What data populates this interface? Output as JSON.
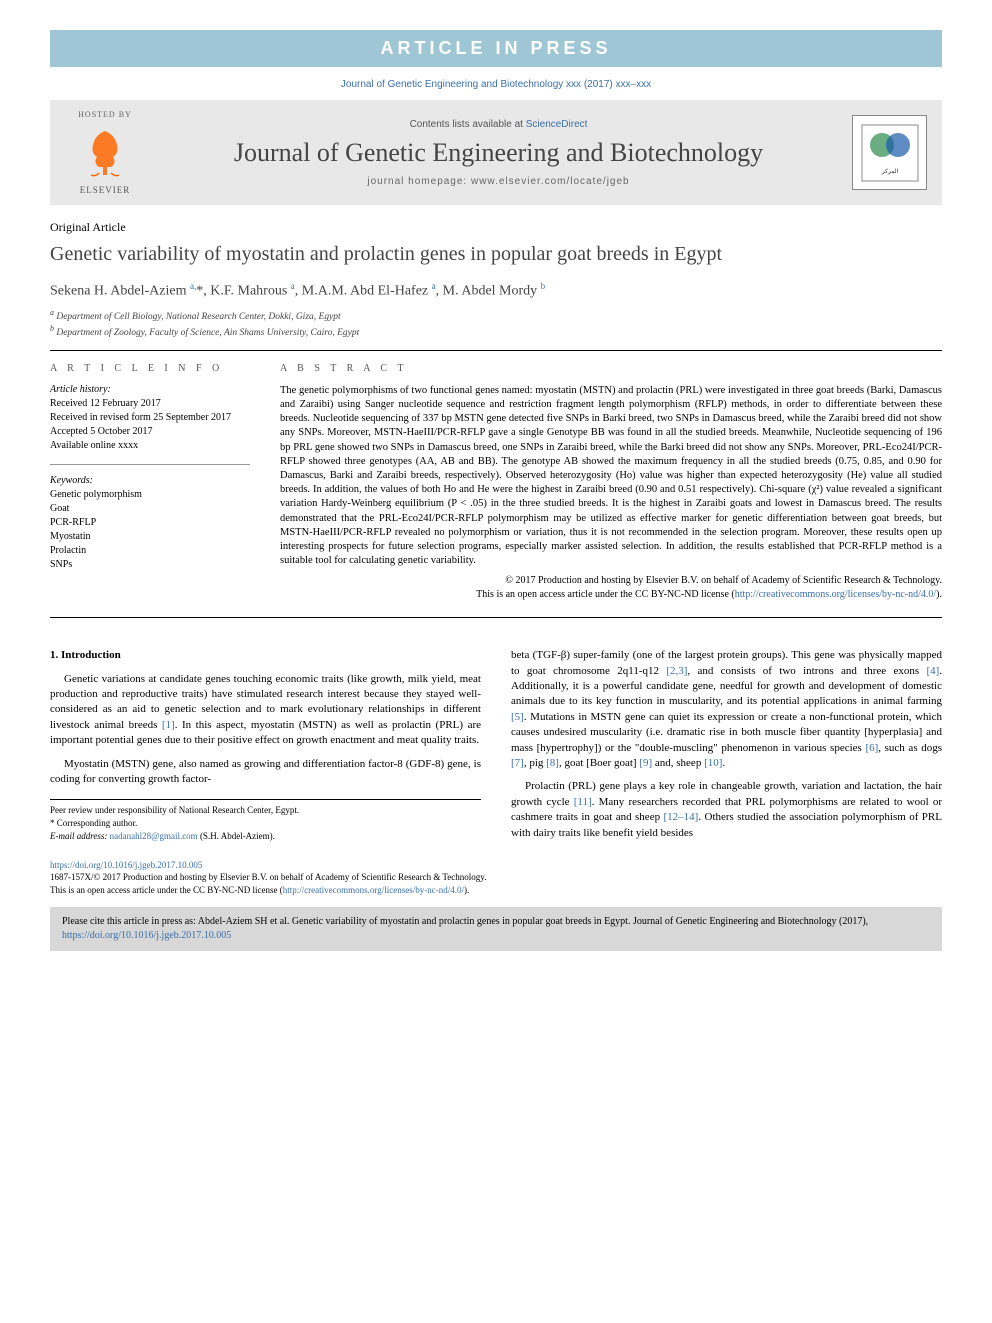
{
  "banner": "ARTICLE IN PRESS",
  "citation_top": "Journal of Genetic Engineering and Biotechnology xxx (2017) xxx–xxx",
  "header": {
    "hosted_by": "HOSTED BY",
    "elsevier": "ELSEVIER",
    "contents_prefix": "Contents lists available at ",
    "contents_link": "ScienceDirect",
    "journal": "Journal of Genetic Engineering and Biotechnology",
    "homepage": "journal homepage: www.elsevier.com/locate/jgeb"
  },
  "article_type": "Original Article",
  "title": "Genetic variability of myostatin and prolactin genes in popular goat breeds in Egypt",
  "authors_html": "Sekena H. Abdel-Aziem <sup>a,</sup>*, K.F. Mahrous <sup>a</sup>, M.A.M. Abd El-Hafez <sup>a</sup>, M. Abdel Mordy <sup>b</sup>",
  "affiliations": [
    "a Department of Cell Biology, National Research Center, Dokki, Giza, Egypt",
    "b Department of Zoology, Faculty of Science, Ain Shams University, Cairo, Egypt"
  ],
  "info": {
    "head": "A R T I C L E   I N F O",
    "history_label": "Article history:",
    "history": [
      "Received 12 February 2017",
      "Received in revised form 25 September 2017",
      "Accepted 5 October 2017",
      "Available online xxxx"
    ],
    "keywords_label": "Keywords:",
    "keywords": [
      "Genetic polymorphism",
      "Goat",
      "PCR-RFLP",
      "Myostatin",
      "Prolactin",
      "SNPs"
    ]
  },
  "abstract": {
    "head": "A B S T R A C T",
    "text": "The genetic polymorphisms of two functional genes named: myostatin (MSTN) and prolactin (PRL) were investigated in three goat breeds (Barki, Damascus and Zaraibi) using Sanger nucleotide sequence and restriction fragment length polymorphism (RFLP) methods, in order to differentiate between these breeds. Nucleotide sequencing of 337 bp MSTN gene detected five SNPs in Barki breed, two SNPs in Damascus breed, while the Zaraibi breed did not show any SNPs. Moreover, MSTN-HaeIII/PCR-RFLP gave a single Genotype BB was found in all the studied breeds. Meanwhile, Nucleotide sequencing of 196 bp PRL gene showed two SNPs in Damascus breed, one SNPs in Zaraibi breed, while the Barki breed did not show any SNPs. Moreover, PRL-Eco24I/PCR-RFLP showed three genotypes (AA, AB and BB). The genotype AB showed the maximum frequency in all the studied breeds (0.75, 0.85, and 0.90 for Damascus, Barki and Zaraibi breeds, respectively). Observed heterozygosity (Ho) value was higher than expected heterozygosity (He) value all studied breeds. In addition, the values of both Ho and He were the highest in Zaraibi breed (0.90 and 0.51 respectively). Chi-square (χ²) value revealed a significant variation Hardy-Weinberg equilibrium (P < .05) in the three studied breeds. It is the highest in Zaraibi goats and lowest in Damascus breed. The results demonstrated that the PRL-Eco24I/PCR-RFLP polymorphism may be utilized as effective marker for genetic differentiation between goat breeds, but MSTN-HaeIII/PCR-RFLP revealed no polymorphism or variation, thus it is not recommended in the selection program. Moreover, these results open up interesting prospects for future selection programs, especially marker assisted selection. In addition, the results established that PCR-RFLP method is a suitable tool for calculating genetic variability.",
    "copyright1": "© 2017 Production and hosting by Elsevier B.V. on behalf of Academy of Scientific Research & Technology.",
    "copyright2": "This is an open access article under the CC BY-NC-ND license (",
    "license_url": "http://creativecommons.org/licenses/by-nc-nd/4.0/",
    "copyright3": ")."
  },
  "body": {
    "intro_head": "1. Introduction",
    "p1a": "Genetic variations at candidate genes touching economic traits (like growth, milk yield, meat production and reproductive traits) have stimulated research interest because they stayed well-considered as an aid to genetic selection and to mark evolutionary relationships in different livestock animal breeds ",
    "r1": "[1]",
    "p1b": ". In this aspect, myostatin (MSTN) as well as prolactin (PRL) are important potential genes due to their positive effect on growth enactment and meat quality traits.",
    "p2": "Myostatin (MSTN) gene, also named as growing and differentiation factor-8 (GDF-8) gene, is coding for converting growth factor-",
    "p3a": "beta (TGF-β) super-family (one of the largest protein groups). This gene was physically mapped to goat chromosome 2q11-q12 ",
    "r23": "[2,3]",
    "p3b": ", and consists of two introns and three exons ",
    "r4": "[4]",
    "p3c": ". Additionally, it is a powerful candidate gene, needful for growth and development of domestic animals due to its key function in muscularity, and its potential applications in animal farming ",
    "r5": "[5]",
    "p3d": ". Mutations in MSTN gene can quiet its expression or create a non-functional protein, which causes undesired muscularity (i.e. dramatic rise in both muscle fiber quantity [hyperplasia] and mass [hypertrophy]) or the \"double-muscling\" phenomenon in various species ",
    "r6": "[6]",
    "p3e": ", such as dogs ",
    "r7": "[7]",
    "p3f": ", pig ",
    "r8": "[8]",
    "p3g": ", goat [Boer goat] ",
    "r9": "[9]",
    "p3h": " and, sheep ",
    "r10": "[10]",
    "p3i": ".",
    "p4a": "Prolactin (PRL) gene plays a key role in changeable growth, variation and lactation, the hair growth cycle ",
    "r11": "[11]",
    "p4b": ". Many researchers recorded that PRL polymorphisms are related to wool or cashmere traits in goat and sheep ",
    "r1214": "[12–14]",
    "p4c": ". Others studied the association polymorphism of PRL with dairy traits like benefit yield besides"
  },
  "footer": {
    "peer": "Peer review under responsibility of National Research Center, Egypt.",
    "corr": "* Corresponding author.",
    "email_label": "E-mail address: ",
    "email": "nadanahl28@gmail.com",
    "email_suffix": " (S.H. Abdel-Aziem).",
    "doi": "https://doi.org/10.1016/j.jgeb.2017.10.005",
    "issn_line": "1687-157X/© 2017 Production and hosting by Elsevier B.V. on behalf of Academy of Scientific Research & Technology.",
    "license_line": "This is an open access article under the CC BY-NC-ND license (",
    "license_url": "http://creativecommons.org/licenses/by-nc-nd/4.0/",
    "license_close": ").",
    "cite_box": "Please cite this article in press as: Abdel-Aziem SH et al. Genetic variability of myostatin and prolactin genes in popular goat breeds in Egypt. Journal of Genetic Engineering and Biotechnology (2017), ",
    "cite_doi": "https://doi.org/10.1016/j.jgeb.2017.10.005"
  },
  "colors": {
    "banner_bg": "#9ec6d4",
    "link": "#3a6fa8",
    "header_bg": "#e8e8e8",
    "cite_bg": "#d8d8d8",
    "elsevier_orange": "#ff6600"
  }
}
